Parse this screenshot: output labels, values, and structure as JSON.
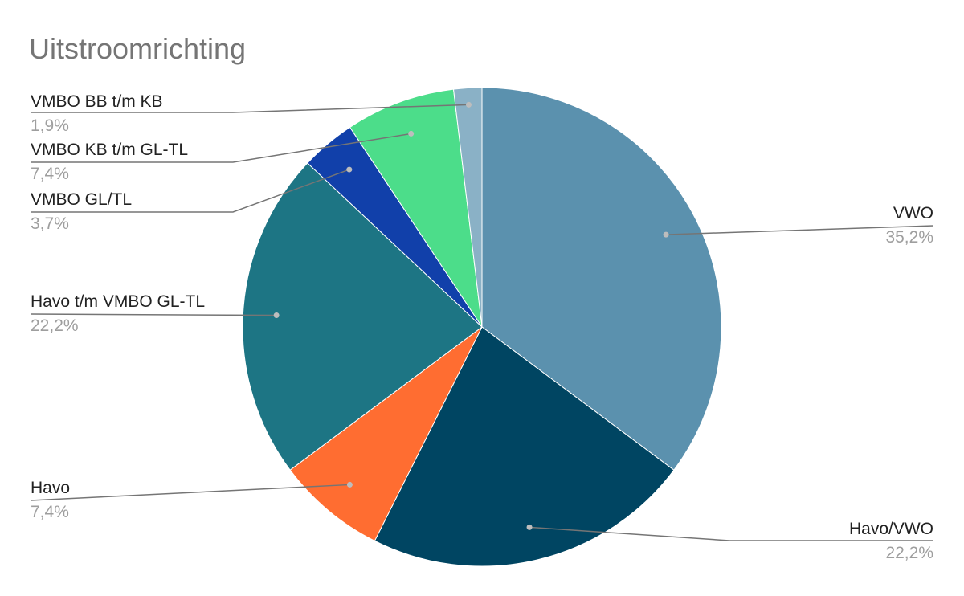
{
  "chart_data": {
    "type": "pie",
    "title": "Uitstroomrichting",
    "legend": "none",
    "slices": [
      {
        "label": "VWO",
        "value": 35.2,
        "value_label": "35,2%",
        "color": "#5b91ae"
      },
      {
        "label": "Havo/VWO",
        "value": 22.2,
        "value_label": "22,2%",
        "color": "#004562"
      },
      {
        "label": "Havo",
        "value": 7.4,
        "value_label": "7,4%",
        "color": "#ff6d31"
      },
      {
        "label": "Havo t/m VMBO GL-TL",
        "value": 22.2,
        "value_label": "22,2%",
        "color": "#1d7584"
      },
      {
        "label": "VMBO GL/TL",
        "value": 3.7,
        "value_label": "3,7%",
        "color": "#1140aa"
      },
      {
        "label": "VMBO KB t/m GL-TL",
        "value": 7.4,
        "value_label": "7,4%",
        "color": "#4cdd8a"
      },
      {
        "label": "VMBO BB t/m KB",
        "value": 1.9,
        "value_label": "1,9%",
        "color": "#8ab1c6"
      }
    ]
  }
}
